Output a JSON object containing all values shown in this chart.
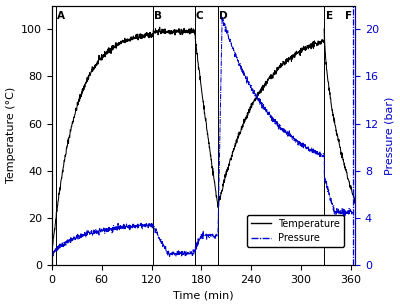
{
  "temp_color": "#000000",
  "pressure_color": "#0000cc",
  "label_color": "#0000cc",
  "bg_color": "#ffffff",
  "xlabel": "Time (min)",
  "ylabel_left": "Temperature (°C)",
  "ylabel_right": "Pressure (bar)",
  "xlim": [
    0,
    365
  ],
  "ylim_temp": [
    0,
    110
  ],
  "ylim_pressure": [
    0,
    22
  ],
  "xticks": [
    0,
    60,
    120,
    180,
    240,
    300,
    360
  ],
  "yticks_left": [
    0,
    20,
    40,
    60,
    80,
    100
  ],
  "yticks_right": [
    0,
    4,
    8,
    12,
    16,
    20
  ],
  "markers": {
    "A": 5,
    "B": 122,
    "C": 172,
    "D": 200,
    "E": 328,
    "F": 362
  },
  "noise_temp": 0.6,
  "noise_press": 0.12
}
